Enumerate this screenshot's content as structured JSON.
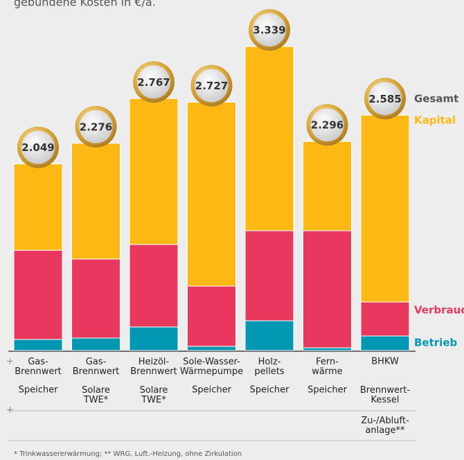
{
  "chart_data": {
    "type": "stacked-bar",
    "title": "gebundene Kosten in €/a.",
    "categories": [
      "Gas-\nBrennwert",
      "Gas-\nBrennwert",
      "Heizöl-\nBrennwert",
      "Sole-Wasser-\nWärmepumpe",
      "Holz-\npellets",
      "Fern-\nwärme",
      "BHKW"
    ],
    "categories_row2": [
      "Speicher",
      "Solare\nTWE*",
      "Solare\nTWE*",
      "Speicher",
      "Speicher",
      "Speicher",
      "Brennwert-\nKessel"
    ],
    "categories_row3": [
      null,
      null,
      null,
      null,
      null,
      null,
      "Zu-/Abluft-\nanlage**"
    ],
    "row_markers": [
      "+",
      "+"
    ],
    "series": [
      {
        "name": "Betrieb",
        "color": "#0097b2",
        "values": [
          122,
          137,
          259,
          46,
          327,
          30,
          160
        ]
      },
      {
        "name": "Verbrauch",
        "color": "#e8385e",
        "values": [
          980,
          868,
          906,
          662,
          989,
          1286,
          373
        ]
      },
      {
        "name": "Kapital",
        "color": "#fdb813",
        "values": [
          947,
          1271,
          1602,
          2019,
          2023,
          980,
          2052
        ]
      }
    ],
    "totals": {
      "name": "Gesamt",
      "color": "#555555",
      "values": [
        2049,
        2276,
        2767,
        2727,
        3339,
        2296,
        2585
      ],
      "value_labels": [
        "2.049",
        "2.276",
        "2.767",
        "2.727",
        "3.339",
        "2.296",
        "2.585"
      ]
    },
    "ylim": [
      0,
      3500
    ],
    "footnote": "* Trinkwassererwärmung; ** WRG, Luft.-Heizung, ohne Zirkulation"
  }
}
